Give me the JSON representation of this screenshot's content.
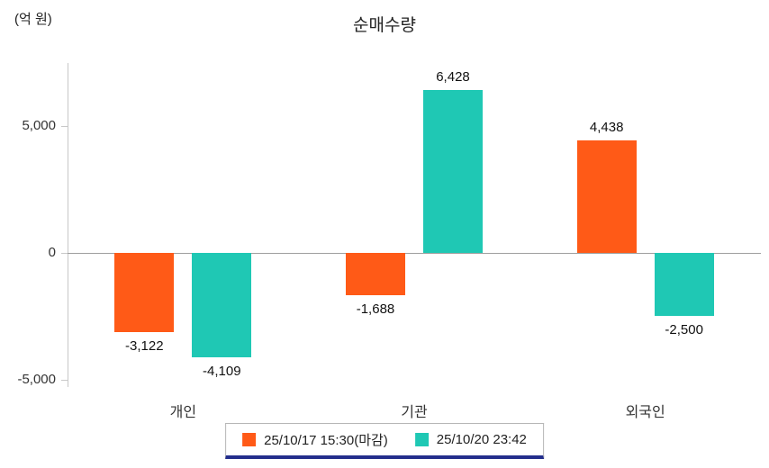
{
  "title": "순매수량",
  "y_axis_unit": "(억 원)",
  "colors": {
    "series1": "#ff5a17",
    "series2": "#1fc8b4",
    "zero_line": "#9e9e9e",
    "axis": "#c8c8c8",
    "legend_border": "#b6b6b6",
    "legend_underline": "#232e8c"
  },
  "chart_data": {
    "type": "bar",
    "title": "순매수량",
    "ylabel": "(억 원)",
    "categories": [
      "개인",
      "기관",
      "외국인"
    ],
    "series": [
      {
        "name": "25/10/17 15:30(마감)",
        "color": "#ff5a17",
        "values": [
          -3122,
          -1688,
          4438
        ]
      },
      {
        "name": "25/10/20 23:42",
        "color": "#1fc8b4",
        "values": [
          -4109,
          6428,
          -2500
        ]
      }
    ],
    "yticks": [
      5000,
      0,
      -5000
    ],
    "ylim": [
      -5300,
      7500
    ],
    "grid": "none",
    "legend_position": "bottom"
  }
}
